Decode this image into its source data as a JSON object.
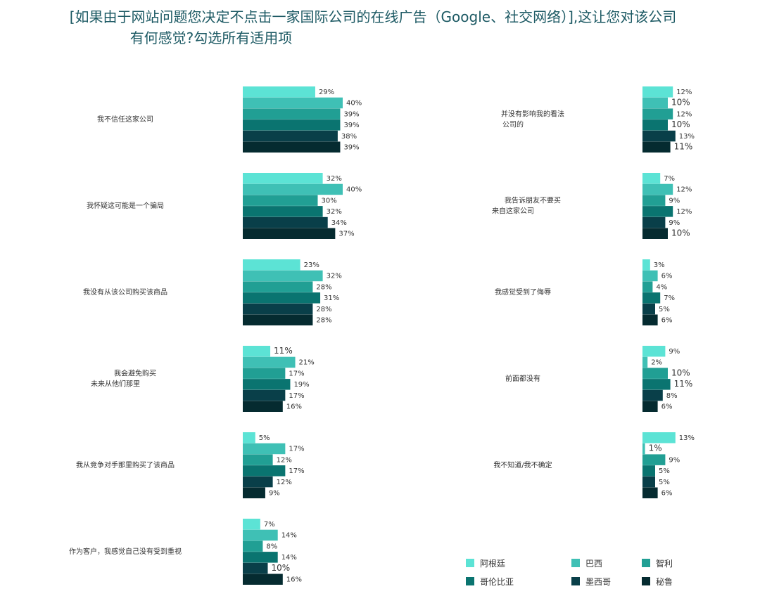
{
  "title": {
    "line1": "[如果由于网站问题您决定不点击一家国际公司的在线广告（Google、社交网络）],这让您对该公司",
    "line2": "有何感觉?勾选所有适用项"
  },
  "chart_data": {
    "type": "bar",
    "orientation": "horizontal",
    "unit": "%",
    "series_colors": [
      "#5ce3d5",
      "#3fc0b5",
      "#219f94",
      "#0a7470",
      "#093f49",
      "#052b30"
    ],
    "series": [
      {
        "name": "阿根廷"
      },
      {
        "name": "巴西"
      },
      {
        "name": "智利"
      },
      {
        "name": "哥伦比亚"
      },
      {
        "name": "墨西哥"
      },
      {
        "name": "秘鲁"
      }
    ],
    "categories": [
      {
        "label_lines": [
          "我不信任这家公司"
        ],
        "values": [
          29,
          40,
          39,
          39,
          38,
          39
        ]
      },
      {
        "label_lines": [
          "我怀疑这可能是一个骗局"
        ],
        "values": [
          32,
          40,
          30,
          32,
          34,
          37
        ]
      },
      {
        "label_lines": [
          "我没有从该公司购买该商品"
        ],
        "values": [
          23,
          32,
          28,
          31,
          28,
          28
        ]
      },
      {
        "label_lines": [
          "我会避免购买",
          "未来从他们那里"
        ],
        "values": [
          11,
          21,
          17,
          19,
          17,
          16
        ]
      },
      {
        "label_lines": [
          "我从竞争对手那里购买了该商品"
        ],
        "values": [
          5,
          17,
          12,
          17,
          12,
          9
        ]
      },
      {
        "label_lines": [
          "作为客户，我感觉自己没有受到重视"
        ],
        "values": [
          7,
          14,
          8,
          14,
          10,
          16
        ]
      },
      {
        "label_lines": [
          "并没有影响我的看法",
          "公司的"
        ],
        "values": [
          12,
          10,
          12,
          10,
          13,
          11
        ]
      },
      {
        "label_lines": [
          "我告诉朋友不要买",
          "来自这家公司"
        ],
        "values": [
          7,
          12,
          9,
          12,
          9,
          10
        ]
      },
      {
        "label_lines": [
          "我感觉受到了侮辱"
        ],
        "values": [
          3,
          6,
          4,
          7,
          5,
          6
        ]
      },
      {
        "label_lines": [
          "前面都没有"
        ],
        "values": [
          9,
          2,
          10,
          11,
          8,
          6
        ]
      },
      {
        "label_lines": [
          "我不知道/我不确定"
        ],
        "values": [
          13,
          1,
          9,
          5,
          5,
          6
        ]
      }
    ]
  }
}
